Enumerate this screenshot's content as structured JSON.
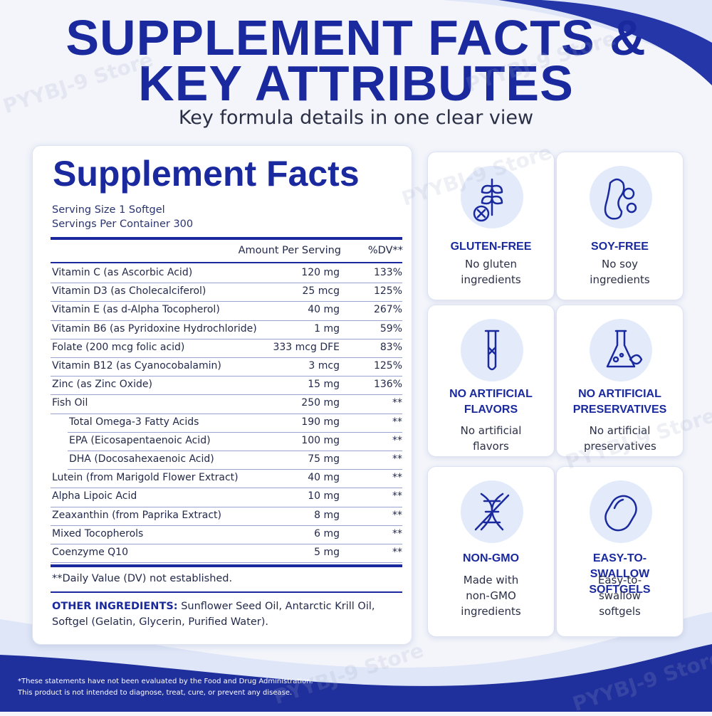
{
  "header": {
    "title_line1": "SUPPLEMENT FACTS &",
    "title_line2": "KEY ATTRIBUTES",
    "subtitle": "Key formula details in one clear view"
  },
  "facts": {
    "title": "Supplement Facts",
    "serving_size": "Serving Size 1 Softgel",
    "servings_per_container": "Servings Per Container 300",
    "column_headers": [
      "Amount Per Serving",
      "%DV**"
    ],
    "rows": [
      {
        "name": "Vitamin C (as Ascorbic Acid)",
        "amount": "120 mg",
        "dv": "133%"
      },
      {
        "name": "Vitamin D3 (as Cholecalciferol)",
        "amount": "25 mcg",
        "dv": "125%"
      },
      {
        "name": "Vitamin E (as d-Alpha Tocopherol)",
        "amount": "40 mg",
        "dv": "267%"
      },
      {
        "name": "Vitamin B6 (as Pyridoxine Hydrochloride)",
        "amount": "1 mg",
        "dv": "59%"
      },
      {
        "name": "Folate (200 mcg folic acid)",
        "amount": "333 mcg DFE",
        "dv": "83%"
      },
      {
        "name": "Vitamin B12 (as Cyanocobalamin)",
        "amount": "3 mcg",
        "dv": "125%"
      },
      {
        "name": "Zinc (as Zinc Oxide)",
        "amount": "15 mg",
        "dv": "136%"
      },
      {
        "name": "Fish Oil",
        "amount": "250 mg",
        "dv": "**",
        "components": [
          {
            "name": "Total Omega-3 Fatty Acids",
            "amount": "190 mg",
            "dv": "**"
          },
          {
            "name": "EPA (Eicosapentaenoic Acid)",
            "amount": "100 mg",
            "dv": "**"
          },
          {
            "name": "DHA (Docosahexaenoic Acid)",
            "amount": "75 mg",
            "dv": "**"
          }
        ]
      },
      {
        "name": "Lutein (from Marigold Flower Extract)",
        "amount": "40 mg",
        "dv": "**"
      },
      {
        "name": "Alpha Lipoic Acid",
        "amount": "10 mg",
        "dv": "**"
      },
      {
        "name": "Zeaxanthin (from Paprika Extract)",
        "amount": "8 mg",
        "dv": "**"
      },
      {
        "name": "Mixed Tocopherols",
        "amount": "6 mg",
        "dv": "**"
      },
      {
        "name": "Coenzyme Q10",
        "amount": "5 mg",
        "dv": "**"
      }
    ],
    "footnote": "**Daily Value (DV) not established.",
    "other_ingredients_label": "OTHER INGREDIENTS:",
    "other_ingredients": "Sunflower Seed Oil, Antarctic Krill Oil, Softgel (Gelatin, Glycerin, Purified Water)."
  },
  "attributes": [
    {
      "title": "GLUTEN-FREE",
      "description": "No gluten ingredients"
    },
    {
      "title": "SOY-FREE",
      "description": "No soy ingredients"
    },
    {
      "title": "NO ARTIFICIAL FLAVORS",
      "description": "No artificial flavors"
    },
    {
      "title": "NO ARTIFICIAL PRESERVATIVES",
      "description": "No artificial preservatives"
    },
    {
      "title": "NON-GMO",
      "description": "Made with non-GMO ingredients"
    },
    {
      "title": "EASY-TO-SWALLOW SOFTGELS",
      "description": "Easy-to-swallow softgels"
    }
  ],
  "disclaimer": [
    "*These statements have not been evaluated by the Food and Drug Administration.",
    "This product is not intended to diagnose, treat, cure, or prevent any disease."
  ],
  "watermark": "PYYBJ-9 Store"
}
